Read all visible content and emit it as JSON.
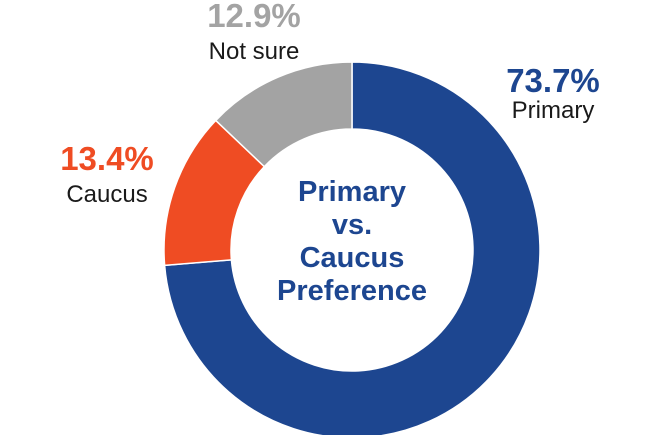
{
  "chart_data": {
    "type": "pie",
    "variant": "donut",
    "title_lines": [
      "Primary",
      "vs.",
      "Caucus",
      "Preference"
    ],
    "slices": [
      {
        "name": "Primary",
        "value": 73.7,
        "label": "73.7%",
        "color": "#1d4690"
      },
      {
        "name": "Caucus",
        "value": 13.4,
        "label": "13.4%",
        "color": "#ef4c23"
      },
      {
        "name": "Not sure",
        "value": 12.9,
        "label": "12.9%",
        "color": "#a3a3a3"
      }
    ],
    "title_color": "#1d4690"
  }
}
